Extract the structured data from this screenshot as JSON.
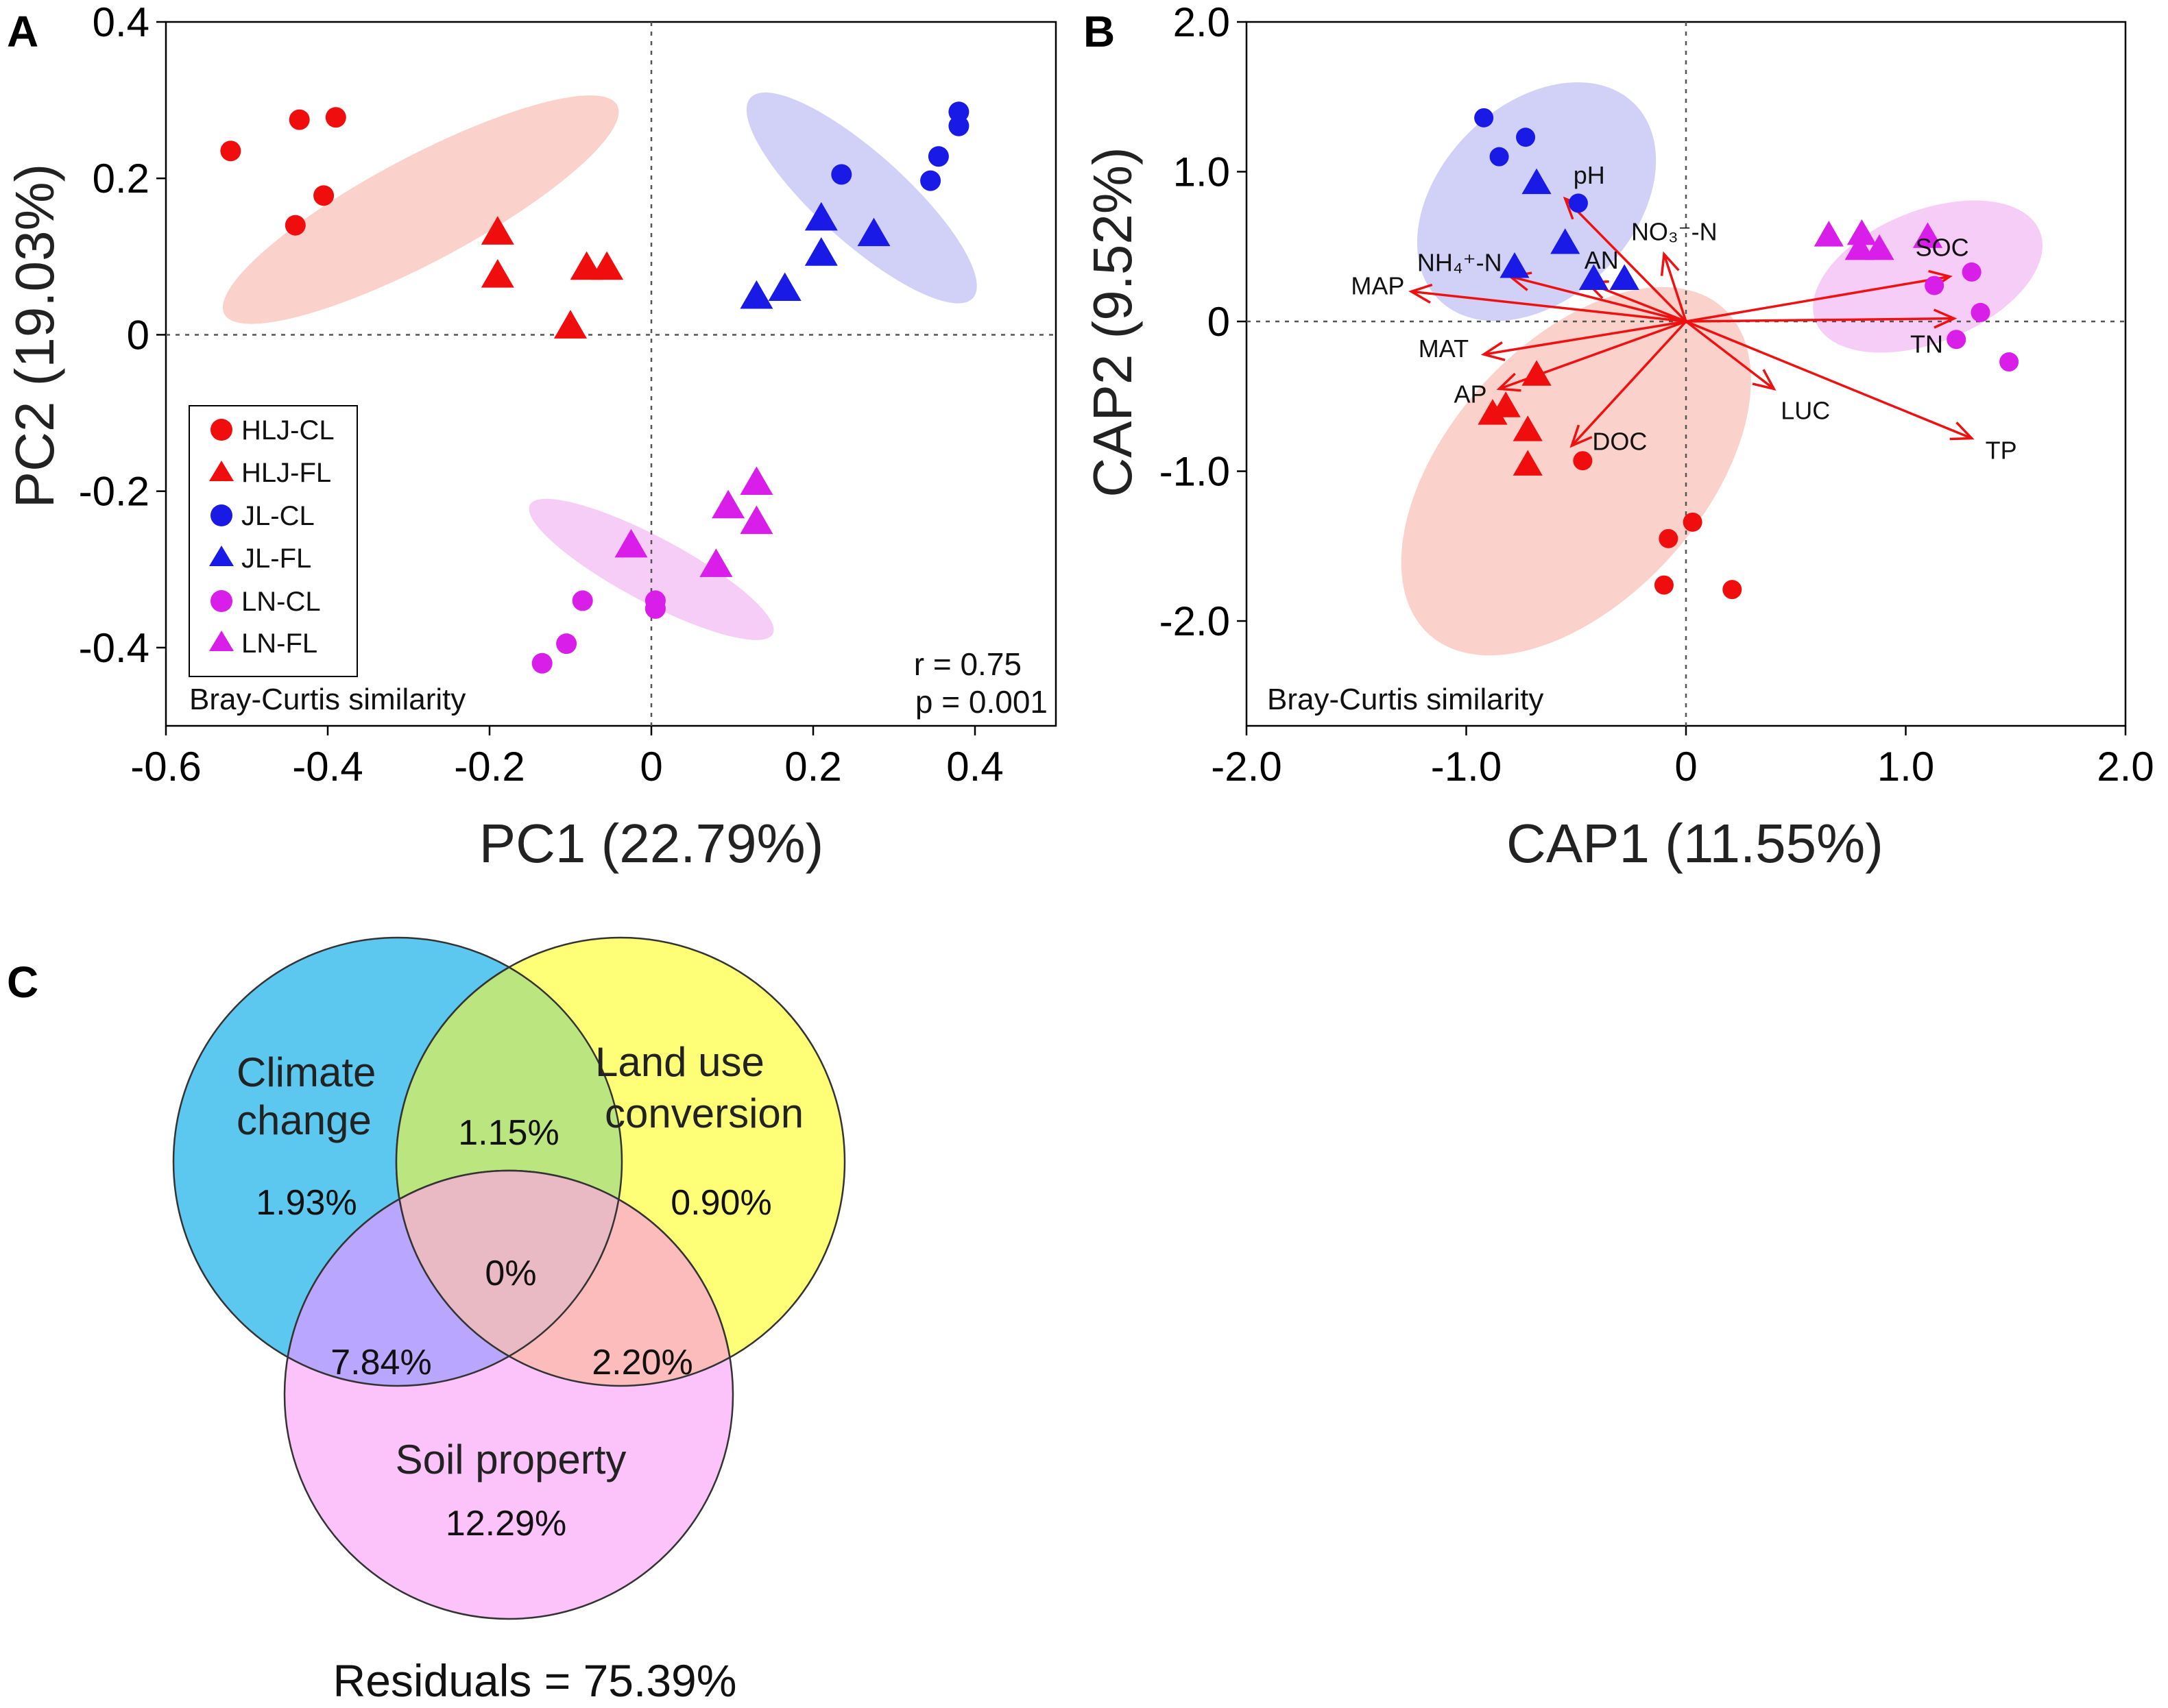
{
  "panels": {
    "a": "A",
    "b": "B",
    "c": "C"
  },
  "colors": {
    "HLJ": "#f00d0d",
    "JL": "#1a1ae6",
    "LN": "#d81ee8",
    "HLJ_ellipse": "#f9c9c2",
    "JL_ellipse": "#c9c9f6",
    "LN_ellipse": "#f5c4f5",
    "arrow": "#ee1111",
    "venn_climate": "#5cc8f0",
    "venn_land": "#ffff77",
    "venn_soil": "#fcc3fb"
  },
  "chart_data": [
    {
      "id": "A",
      "type": "scatter",
      "xlabel": "PC1 (22.79%)",
      "ylabel": "PC2 (19.03%)",
      "xlim": [
        -0.6,
        0.5
      ],
      "ylim": [
        -0.5,
        0.4
      ],
      "xticks": [
        -0.6,
        -0.4,
        -0.2,
        0,
        0.2,
        0.4
      ],
      "yticks": [
        -0.4,
        -0.2,
        0,
        0.2,
        0.4
      ],
      "xtick_labels": [
        "-0.6",
        "-0.4",
        "-0.2",
        "0",
        "0.2",
        "0.4"
      ],
      "ytick_labels": [
        "-0.4",
        "-0.2",
        "0",
        "0.2",
        "0.4"
      ],
      "corner_label": "Bray-Curtis similarity",
      "stats": {
        "r": "r = 0.75",
        "p": "p = 0.001"
      },
      "legend": [
        {
          "label": "HLJ-CL",
          "group": "HLJ",
          "shape": "circle"
        },
        {
          "label": "HLJ-FL",
          "group": "HLJ",
          "shape": "triangle"
        },
        {
          "label": "JL-CL",
          "group": "JL",
          "shape": "circle"
        },
        {
          "label": "JL-FL",
          "group": "JL",
          "shape": "triangle"
        },
        {
          "label": "LN-CL",
          "group": "LN",
          "shape": "circle"
        },
        {
          "label": "LN-FL",
          "group": "LN",
          "shape": "triangle"
        }
      ],
      "ellipses": [
        {
          "group": "HLJ",
          "cx": -0.285,
          "cy": 0.16,
          "rx": 0.275,
          "ry": 0.065,
          "angle_deg": -28
        },
        {
          "group": "JL",
          "cx": 0.26,
          "cy": 0.175,
          "rx": 0.185,
          "ry": 0.055,
          "angle_deg": 42
        },
        {
          "group": "LN",
          "cx": 0.0,
          "cy": -0.3,
          "rx": 0.17,
          "ry": 0.04,
          "angle_deg": 28
        }
      ],
      "series": [
        {
          "name": "HLJ-CL",
          "group": "HLJ",
          "shape": "circle",
          "points": [
            [
              -0.52,
              0.235
            ],
            [
              -0.435,
              0.275
            ],
            [
              -0.39,
              0.278
            ],
            [
              -0.44,
              0.14
            ],
            [
              -0.405,
              0.178
            ]
          ]
        },
        {
          "name": "HLJ-FL",
          "group": "HLJ",
          "shape": "triangle",
          "points": [
            [
              -0.19,
              0.13
            ],
            [
              -0.19,
              0.075
            ],
            [
              -0.08,
              0.085
            ],
            [
              -0.055,
              0.085
            ],
            [
              -0.1,
              0.01
            ]
          ]
        },
        {
          "name": "JL-CL",
          "group": "JL",
          "shape": "circle",
          "points": [
            [
              0.235,
              0.205
            ],
            [
              0.38,
              0.285
            ],
            [
              0.38,
              0.267
            ],
            [
              0.355,
              0.228
            ],
            [
              0.345,
              0.197
            ]
          ]
        },
        {
          "name": "JL-FL",
          "group": "JL",
          "shape": "triangle",
          "points": [
            [
              0.21,
              0.148
            ],
            [
              0.275,
              0.128
            ],
            [
              0.21,
              0.103
            ],
            [
              0.165,
              0.058
            ],
            [
              0.13,
              0.048
            ]
          ]
        },
        {
          "name": "LN-CL",
          "group": "LN",
          "shape": "circle",
          "points": [
            [
              -0.085,
              -0.34
            ],
            [
              0.005,
              -0.34
            ],
            [
              0.005,
              -0.35
            ],
            [
              -0.105,
              -0.395
            ],
            [
              -0.135,
              -0.42
            ]
          ]
        },
        {
          "name": "LN-FL",
          "group": "LN",
          "shape": "triangle",
          "points": [
            [
              -0.025,
              -0.27
            ],
            [
              0.095,
              -0.22
            ],
            [
              0.13,
              -0.19
            ],
            [
              0.13,
              -0.24
            ],
            [
              0.08,
              -0.295
            ]
          ]
        }
      ]
    },
    {
      "id": "B",
      "type": "scatter",
      "xlabel": "CAP1 (11.55%)",
      "ylabel": "CAP2 (9.52%)",
      "xlim": [
        -2.0,
        2.0
      ],
      "ylim": [
        -2.7,
        2.0
      ],
      "xticks": [
        -2.0,
        -1.0,
        0,
        1.0,
        2.0
      ],
      "yticks": [
        -2.0,
        -1.0,
        0,
        1.0,
        2.0
      ],
      "xtick_labels": [
        "-2.0",
        "-1.0",
        "0",
        "1.0",
        "2.0"
      ],
      "ytick_labels": [
        "-2.0",
        "-1.0",
        "0",
        "1.0",
        "2.0"
      ],
      "corner_label": "Bray-Curtis similarity",
      "ellipses": [
        {
          "group": "HLJ",
          "cx": -0.5,
          "cy": -1.0,
          "rx": 1.0,
          "ry": 0.58,
          "angle_deg": -48
        },
        {
          "group": "JL",
          "cx": -0.68,
          "cy": 0.8,
          "rx": 0.63,
          "ry": 0.44,
          "angle_deg": -45
        },
        {
          "group": "LN",
          "cx": 1.1,
          "cy": 0.3,
          "rx": 0.55,
          "ry": 0.3,
          "angle_deg": -22
        }
      ],
      "series": [
        {
          "name": "HLJ-CL",
          "group": "HLJ",
          "shape": "circle",
          "points": [
            [
              -0.47,
              -0.93
            ],
            [
              -0.08,
              -1.45
            ],
            [
              0.03,
              -1.34
            ],
            [
              -0.1,
              -1.76
            ],
            [
              0.21,
              -1.79
            ]
          ]
        },
        {
          "name": "HLJ-FL",
          "group": "HLJ",
          "shape": "triangle",
          "points": [
            [
              -0.68,
              -0.36
            ],
            [
              -0.82,
              -0.57
            ],
            [
              -0.88,
              -0.62
            ],
            [
              -0.72,
              -0.73
            ],
            [
              -0.72,
              -0.96
            ]
          ]
        },
        {
          "name": "JL-CL",
          "group": "JL",
          "shape": "circle",
          "points": [
            [
              -0.92,
              1.36
            ],
            [
              -0.73,
              1.23
            ],
            [
              -0.85,
              1.1
            ],
            [
              -0.49,
              0.79
            ]
          ]
        },
        {
          "name": "JL-FL",
          "group": "JL",
          "shape": "triangle",
          "points": [
            [
              -0.68,
              0.92
            ],
            [
              -0.55,
              0.52
            ],
            [
              -0.78,
              0.36
            ],
            [
              -0.42,
              0.28
            ],
            [
              -0.28,
              0.28
            ]
          ]
        },
        {
          "name": "LN-CL",
          "group": "LN",
          "shape": "circle",
          "points": [
            [
              1.3,
              0.33
            ],
            [
              1.13,
              0.24
            ],
            [
              1.34,
              0.06
            ],
            [
              1.23,
              -0.12
            ],
            [
              1.47,
              -0.27
            ]
          ]
        },
        {
          "name": "LN-FL",
          "group": "LN",
          "shape": "triangle",
          "points": [
            [
              0.65,
              0.57
            ],
            [
              0.8,
              0.58
            ],
            [
              0.79,
              0.48
            ],
            [
              0.88,
              0.48
            ],
            [
              1.1,
              0.56
            ]
          ]
        }
      ],
      "vectors": [
        {
          "label": "pH",
          "x": -0.55,
          "y": 0.82
        },
        {
          "label": "NH₄⁺-N",
          "x": -0.8,
          "y": 0.3
        },
        {
          "label": "AN",
          "x": -0.45,
          "y": 0.26
        },
        {
          "label": "NO₃⁻-N",
          "x": -0.1,
          "y": 0.45
        },
        {
          "label": "MAP",
          "x": -1.25,
          "y": 0.2
        },
        {
          "label": "MAT",
          "x": -0.92,
          "y": -0.22
        },
        {
          "label": "AP",
          "x": -0.85,
          "y": -0.45
        },
        {
          "label": "DOC",
          "x": -0.52,
          "y": -0.83
        },
        {
          "label": "LUC",
          "x": 0.4,
          "y": -0.45
        },
        {
          "label": "SOC",
          "x": 1.2,
          "y": 0.3
        },
        {
          "label": "TN",
          "x": 1.22,
          "y": 0.02
        },
        {
          "label": "TP",
          "x": 1.3,
          "y": -0.78
        }
      ]
    }
  ],
  "venn": {
    "climate": {
      "line1": "Climate",
      "line2": "change",
      "value": "1.93%"
    },
    "land": {
      "line1": "Land use",
      "line2": "conversion",
      "value": "0.90%"
    },
    "soil": {
      "line1": "Soil property",
      "value": "12.29%"
    },
    "climate_land": "1.15%",
    "all": "0%",
    "climate_soil": "7.84%",
    "land_soil": "2.20%",
    "residuals": "Residuals = 75.39%"
  }
}
